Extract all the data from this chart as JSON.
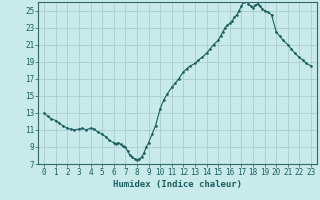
{
  "title": "",
  "xlabel": "Humidex (Indice chaleur)",
  "ylabel": "",
  "background_color": "#c8eaea",
  "grid_color": "#aacccc",
  "line_color": "#1a5f5f",
  "spine_color": "#336666",
  "xlim": [
    -0.5,
    23.5
  ],
  "ylim": [
    7,
    26
  ],
  "yticks": [
    7,
    9,
    11,
    13,
    15,
    17,
    19,
    21,
    23,
    25
  ],
  "xticks": [
    0,
    1,
    2,
    3,
    4,
    5,
    6,
    7,
    8,
    9,
    10,
    11,
    12,
    13,
    14,
    15,
    16,
    17,
    18,
    19,
    20,
    21,
    22,
    23
  ],
  "x": [
    0,
    0.3,
    0.6,
    1.0,
    1.3,
    1.6,
    2.0,
    2.3,
    2.6,
    3.0,
    3.3,
    3.6,
    4.0,
    4.3,
    4.6,
    5.0,
    5.3,
    5.6,
    6.0,
    6.2,
    6.4,
    6.6,
    6.8,
    7.0,
    7.2,
    7.4,
    7.6,
    7.8,
    8.0,
    8.2,
    8.4,
    8.6,
    8.8,
    9.0,
    9.3,
    9.6,
    10.0,
    10.3,
    10.6,
    11.0,
    11.3,
    11.6,
    12.0,
    12.3,
    12.6,
    13.0,
    13.3,
    13.6,
    14.0,
    14.3,
    14.6,
    15.0,
    15.2,
    15.4,
    15.6,
    15.8,
    16.0,
    16.2,
    16.4,
    16.6,
    16.8,
    17.0,
    17.2,
    17.4,
    17.6,
    17.8,
    18.0,
    18.2,
    18.4,
    18.6,
    18.8,
    19.0,
    19.3,
    19.6,
    20.0,
    20.3,
    20.6,
    21.0,
    21.3,
    21.6,
    22.0,
    22.3,
    22.6,
    23.0
  ],
  "y": [
    13.0,
    12.6,
    12.3,
    12.1,
    11.8,
    11.5,
    11.2,
    11.1,
    11.0,
    11.1,
    11.2,
    11.0,
    11.2,
    11.1,
    10.8,
    10.5,
    10.2,
    9.8,
    9.5,
    9.4,
    9.5,
    9.3,
    9.1,
    9.0,
    8.5,
    8.0,
    7.8,
    7.6,
    7.5,
    7.6,
    7.8,
    8.3,
    9.0,
    9.5,
    10.5,
    11.5,
    13.5,
    14.5,
    15.2,
    16.0,
    16.5,
    17.0,
    17.8,
    18.2,
    18.5,
    18.8,
    19.2,
    19.5,
    20.0,
    20.5,
    21.0,
    21.5,
    22.0,
    22.5,
    23.0,
    23.3,
    23.5,
    23.8,
    24.2,
    24.5,
    25.0,
    25.5,
    26.0,
    26.2,
    25.8,
    25.5,
    25.3,
    25.6,
    25.8,
    25.5,
    25.2,
    25.0,
    24.8,
    24.5,
    22.5,
    22.0,
    21.5,
    21.0,
    20.5,
    20.0,
    19.5,
    19.2,
    18.8,
    18.5
  ]
}
